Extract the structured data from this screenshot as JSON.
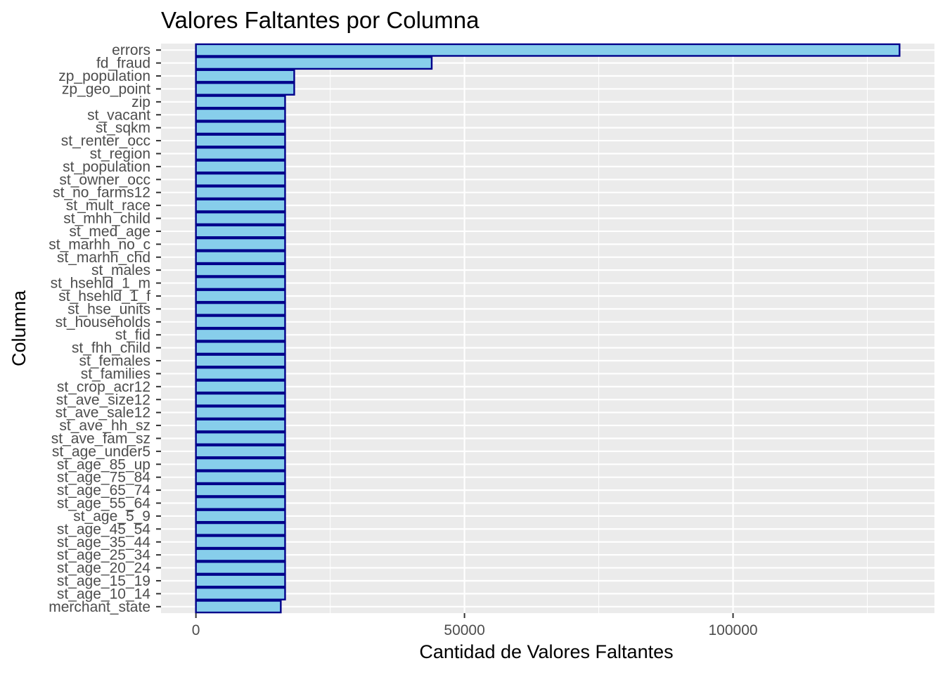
{
  "chart_data": {
    "type": "bar",
    "orientation": "horizontal",
    "title": "Valores Faltantes por Columna",
    "xlabel": "Cantidad de Valores Faltantes",
    "ylabel": "Columna",
    "xlim": [
      -6500,
      137500
    ],
    "xticks": [
      0,
      50000,
      100000
    ],
    "xtick_labels": [
      "0",
      "50000",
      "100000"
    ],
    "grid": true,
    "legend": "none",
    "colors": {
      "bar_fill": "#87ceeb",
      "bar_stroke": "#00008b",
      "panel": "#ebebeb",
      "grid": "#ffffff"
    },
    "categories": [
      "errors",
      "fd_fraud",
      "zp_population",
      "zp_geo_point",
      "zip",
      "st_vacant",
      "st_sqkm",
      "st_renter_occ",
      "st_region",
      "st_population",
      "st_owner_occ",
      "st_no_farms12",
      "st_mult_race",
      "st_mhh_child",
      "st_med_age",
      "st_marhh_no_c",
      "st_marhh_chd",
      "st_males",
      "st_hsehld_1_m",
      "st_hsehld_1_f",
      "st_hse_units",
      "st_households",
      "st_fid",
      "st_fhh_child",
      "st_females",
      "st_families",
      "st_crop_acr12",
      "st_ave_size12",
      "st_ave_sale12",
      "st_ave_hh_sz",
      "st_ave_fam_sz",
      "st_age_under5",
      "st_age_85_up",
      "st_age_75_84",
      "st_age_65_74",
      "st_age_55_64",
      "st_age_5_9",
      "st_age_45_54",
      "st_age_35_44",
      "st_age_25_34",
      "st_age_20_24",
      "st_age_15_19",
      "st_age_10_14",
      "merchant_state"
    ],
    "values": [
      131000,
      43900,
      18300,
      18300,
      16600,
      16600,
      16600,
      16600,
      16600,
      16600,
      16600,
      16600,
      16600,
      16600,
      16600,
      16600,
      16600,
      16600,
      16600,
      16600,
      16600,
      16600,
      16600,
      16600,
      16600,
      16600,
      16600,
      16600,
      16600,
      16600,
      16600,
      16600,
      16600,
      16600,
      16600,
      16600,
      16600,
      16600,
      16600,
      16600,
      16600,
      16600,
      16600,
      15800
    ]
  }
}
